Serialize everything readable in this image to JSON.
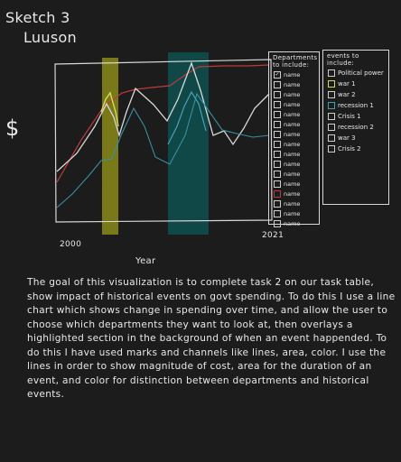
{
  "title": {
    "line1": "Sketch 3",
    "line2": "Luuson"
  },
  "y_axis_symbol": "$",
  "chart_data": {
    "type": "line",
    "xlabel": "Year",
    "x_tick_labels": [
      "2000",
      "2021"
    ],
    "ylabel": "$",
    "series_colors": [
      "#c03a3a",
      "#d8d8d8",
      "#3a8fa0",
      "#d9d957",
      "#4aa0b8"
    ],
    "event_band_colors": [
      "#8a8a1a",
      "#0f4d4d"
    ]
  },
  "departments_panel": {
    "title": "Departments to include:",
    "items": [
      {
        "label": "name",
        "checked": true
      },
      {
        "label": "name"
      },
      {
        "label": "name"
      },
      {
        "label": "name"
      },
      {
        "label": "name"
      },
      {
        "label": "name"
      },
      {
        "label": "name"
      },
      {
        "label": "name"
      },
      {
        "label": "name"
      },
      {
        "label": "name"
      },
      {
        "label": "name"
      },
      {
        "label": "name"
      },
      {
        "label": "name"
      },
      {
        "label": "name"
      },
      {
        "label": "name"
      },
      {
        "label": "name"
      }
    ],
    "box_colors": [
      "#cfcfcf",
      "#cfcfcf",
      "#cfcfcf",
      "#cfcfcf",
      "#cfcfcf",
      "#cfcfcf",
      "#cfcfcf",
      "#cfcfcf",
      "#cfcfcf",
      "#cfcfcf",
      "#cfcfcf",
      "#cfcfcf",
      "#c03a3a",
      "#cfcfcf",
      "#cfcfcf",
      "#cfcfcf"
    ]
  },
  "events_panel": {
    "title": "events to include:",
    "items": [
      {
        "label": "Political power"
      },
      {
        "label": "war 1"
      },
      {
        "label": "war 2"
      },
      {
        "label": "recession 1"
      },
      {
        "label": "Crisis 1"
      },
      {
        "label": "recession 2"
      },
      {
        "label": "war 3"
      },
      {
        "label": "Crisis 2"
      }
    ],
    "box_colors": [
      "#cfcfcf",
      "#d9d957",
      "#cfcfcf",
      "#3aa5a5",
      "#cfcfcf",
      "#cfcfcf",
      "#cfcfcf",
      "#cfcfcf"
    ]
  },
  "description": "The goal of this visualization is to complete task 2 on our task table, show impact of historical events on govt spending. To do this I use a line chart which shows change in spending over time, and allow the user to choose which departments they want to look at, then overlays a highlighted section in the background of when an event happended. To do this I have used marks and channels like lines, area, color. I use the lines in order to show magnitude of cost, area for the duration of an event, and color for distinction between departments and historical events."
}
